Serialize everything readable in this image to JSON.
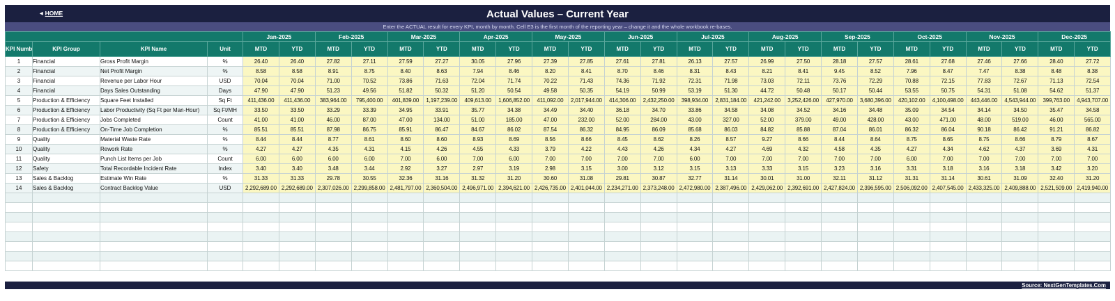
{
  "header": {
    "home_label": "HOME",
    "title": "Actual Values  –  Current Year",
    "subtitle": "Enter the ACTUAL result for every KPI, month by month. Cell E3 is the first month of the reporting year – change it and the whole workbook re-bases."
  },
  "columns": {
    "kpi_number": "KPI Number",
    "kpi_group": "KPI Group",
    "kpi_name": "KPI Name",
    "unit": "Unit",
    "mtd": "MTD",
    "ytd": "YTD"
  },
  "months": [
    "Jan-2025",
    "Feb-2025",
    "Mar-2025",
    "Apr-2025",
    "May-2025",
    "Jun-2025",
    "Jul-2025",
    "Aug-2025",
    "Sep-2025",
    "Oct-2025",
    "Nov-2025",
    "Dec-2025"
  ],
  "rows": [
    {
      "num": "1",
      "group": "Financial",
      "name": "Gross Profit Margin",
      "unit": "%",
      "values": [
        "26.40",
        "26.40",
        "27.82",
        "27.11",
        "27.59",
        "27.27",
        "30.05",
        "27.96",
        "27.39",
        "27.85",
        "27.61",
        "27.81",
        "26.13",
        "27.57",
        "26.99",
        "27.50",
        "28.18",
        "27.57",
        "28.61",
        "27.68",
        "27.46",
        "27.66",
        "28.40",
        "27.72"
      ]
    },
    {
      "num": "2",
      "group": "Financial",
      "name": "Net Profit Margin",
      "unit": "%",
      "values": [
        "8.58",
        "8.58",
        "8.91",
        "8.75",
        "8.40",
        "8.63",
        "7.94",
        "8.46",
        "8.20",
        "8.41",
        "8.70",
        "8.46",
        "8.31",
        "8.43",
        "8.21",
        "8.41",
        "9.45",
        "8.52",
        "7.96",
        "8.47",
        "7.47",
        "8.38",
        "8.48",
        "8.38"
      ]
    },
    {
      "num": "3",
      "group": "Financial",
      "name": "Revenue per Labor Hour",
      "unit": "USD",
      "values": [
        "70.04",
        "70.04",
        "71.00",
        "70.52",
        "73.86",
        "71.63",
        "72.04",
        "71.74",
        "70.22",
        "71.43",
        "74.36",
        "71.92",
        "72.31",
        "71.98",
        "73.03",
        "72.11",
        "73.76",
        "72.29",
        "70.88",
        "72.15",
        "77.83",
        "72.67",
        "71.13",
        "72.54"
      ]
    },
    {
      "num": "4",
      "group": "Financial",
      "name": "Days Sales Outstanding",
      "unit": "Days",
      "values": [
        "47.90",
        "47.90",
        "51.23",
        "49.56",
        "51.82",
        "50.32",
        "51.20",
        "50.54",
        "49.58",
        "50.35",
        "54.19",
        "50.99",
        "53.19",
        "51.30",
        "44.72",
        "50.48",
        "50.17",
        "50.44",
        "53.55",
        "50.75",
        "54.31",
        "51.08",
        "54.62",
        "51.37"
      ]
    },
    {
      "num": "5",
      "group": "Production & Efficiency",
      "name": "Square Feet Installed",
      "unit": "Sq Ft",
      "values": [
        "411,436.00",
        "411,436.00",
        "383,964.00",
        "795,400.00",
        "401,839.00",
        "1,197,239.00",
        "409,613.00",
        "1,606,852.00",
        "411,092.00",
        "2,017,944.00",
        "414,306.00",
        "2,432,250.00",
        "398,934.00",
        "2,831,184.00",
        "421,242.00",
        "3,252,426.00",
        "427,970.00",
        "3,680,396.00",
        "420,102.00",
        "4,100,498.00",
        "443,446.00",
        "4,543,944.00",
        "399,763.00",
        "4,943,707.00"
      ]
    },
    {
      "num": "6",
      "group": "Production & Efficiency",
      "name": "Labor Productivity (Sq Ft per Man-Hour)",
      "unit": "Sq Ft/MH",
      "values": [
        "33.50",
        "33.50",
        "33.29",
        "33.39",
        "34.95",
        "33.91",
        "35.77",
        "34.38",
        "34.49",
        "34.40",
        "36.18",
        "34.70",
        "33.86",
        "34.58",
        "34.08",
        "34.52",
        "34.16",
        "34.48",
        "35.09",
        "34.54",
        "34.14",
        "34.50",
        "35.47",
        "34.58"
      ]
    },
    {
      "num": "7",
      "group": "Production & Efficiency",
      "name": "Jobs Completed",
      "unit": "Count",
      "values": [
        "41.00",
        "41.00",
        "46.00",
        "87.00",
        "47.00",
        "134.00",
        "51.00",
        "185.00",
        "47.00",
        "232.00",
        "52.00",
        "284.00",
        "43.00",
        "327.00",
        "52.00",
        "379.00",
        "49.00",
        "428.00",
        "43.00",
        "471.00",
        "48.00",
        "519.00",
        "46.00",
        "565.00"
      ]
    },
    {
      "num": "8",
      "group": "Production & Efficiency",
      "name": "On-Time Job Completion",
      "unit": "%",
      "values": [
        "85.51",
        "85.51",
        "87.98",
        "86.75",
        "85.91",
        "86.47",
        "84.67",
        "86.02",
        "87.54",
        "86.32",
        "84.95",
        "86.09",
        "85.68",
        "86.03",
        "84.82",
        "85.88",
        "87.04",
        "86.01",
        "86.32",
        "86.04",
        "90.18",
        "86.42",
        "91.21",
        "86.82"
      ]
    },
    {
      "num": "9",
      "group": "Quality",
      "name": "Material Waste Rate",
      "unit": "%",
      "values": [
        "8.44",
        "8.44",
        "8.77",
        "8.61",
        "8.60",
        "8.60",
        "8.93",
        "8.69",
        "8.56",
        "8.66",
        "8.45",
        "8.62",
        "8.26",
        "8.57",
        "9.27",
        "8.66",
        "8.44",
        "8.64",
        "8.75",
        "8.65",
        "8.75",
        "8.66",
        "8.79",
        "8.67"
      ]
    },
    {
      "num": "10",
      "group": "Quality",
      "name": "Rework Rate",
      "unit": "%",
      "values": [
        "4.27",
        "4.27",
        "4.35",
        "4.31",
        "4.15",
        "4.26",
        "4.55",
        "4.33",
        "3.79",
        "4.22",
        "4.43",
        "4.26",
        "4.34",
        "4.27",
        "4.69",
        "4.32",
        "4.58",
        "4.35",
        "4.27",
        "4.34",
        "4.62",
        "4.37",
        "3.69",
        "4.31"
      ]
    },
    {
      "num": "11",
      "group": "Quality",
      "name": "Punch List Items per Job",
      "unit": "Count",
      "values": [
        "6.00",
        "6.00",
        "6.00",
        "6.00",
        "7.00",
        "6.00",
        "7.00",
        "6.00",
        "7.00",
        "7.00",
        "7.00",
        "7.00",
        "6.00",
        "7.00",
        "7.00",
        "7.00",
        "7.00",
        "7.00",
        "6.00",
        "7.00",
        "7.00",
        "7.00",
        "7.00",
        "7.00"
      ]
    },
    {
      "num": "12",
      "group": "Safety",
      "name": "Total Recordable Incident Rate",
      "unit": "Index",
      "values": [
        "3.40",
        "3.40",
        "3.48",
        "3.44",
        "2.92",
        "3.27",
        "2.97",
        "3.19",
        "2.98",
        "3.15",
        "3.00",
        "3.12",
        "3.15",
        "3.13",
        "3.33",
        "3.15",
        "3.23",
        "3.16",
        "3.31",
        "3.18",
        "3.16",
        "3.18",
        "3.42",
        "3.20"
      ]
    },
    {
      "num": "13",
      "group": "Sales & Backlog",
      "name": "Estimate Win Rate",
      "unit": "%",
      "values": [
        "31.33",
        "31.33",
        "29.78",
        "30.55",
        "32.36",
        "31.16",
        "31.32",
        "31.20",
        "30.60",
        "31.08",
        "29.81",
        "30.87",
        "32.77",
        "31.14",
        "30.01",
        "31.00",
        "32.11",
        "31.12",
        "31.31",
        "31.14",
        "30.61",
        "31.09",
        "32.40",
        "31.20"
      ]
    },
    {
      "num": "14",
      "group": "Sales & Backlog",
      "name": "Contract Backlog Value",
      "unit": "USD",
      "values": [
        "2,292,689.00",
        "2,292,689.00",
        "2,307,026.00",
        "2,299,858.00",
        "2,481,797.00",
        "2,360,504.00",
        "2,496,971.00",
        "2,394,621.00",
        "2,426,735.00",
        "2,401,044.00",
        "2,234,271.00",
        "2,373,248.00",
        "2,472,980.00",
        "2,387,496.00",
        "2,429,062.00",
        "2,392,691.00",
        "2,427,824.00",
        "2,396,595.00",
        "2,506,092.00",
        "2,407,545.00",
        "2,433,325.00",
        "2,409,888.00",
        "2,521,509.00",
        "2,419,940.00"
      ]
    }
  ],
  "empty_rows": 8,
  "footer": {
    "source": "Source: NextGenTemplates.Com"
  },
  "colors": {
    "navy": "#1b2040",
    "teal": "#13796b",
    "input_fill": "#fbf7c2",
    "subtitle_band": "#4a4d80"
  }
}
